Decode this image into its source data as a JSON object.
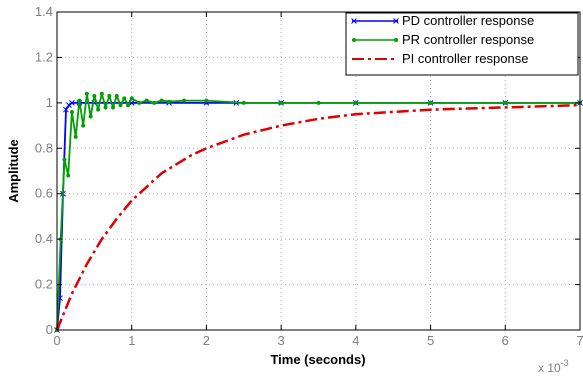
{
  "chart_data": {
    "type": "line",
    "xlabel": "Time (seconds)",
    "ylabel": "Amplitude",
    "x_exponent_label": "x 10",
    "x_exponent_power": "-3",
    "xlim": [
      0,
      0.007
    ],
    "ylim": [
      0,
      1.4
    ],
    "x_ticks": [
      0,
      0.001,
      0.002,
      0.003,
      0.004,
      0.005,
      0.006,
      0.007
    ],
    "x_tick_labels": [
      "0",
      "1",
      "2",
      "3",
      "4",
      "5",
      "6",
      "7"
    ],
    "y_ticks": [
      0,
      0.2,
      0.4,
      0.6,
      0.8,
      1.0,
      1.2,
      1.4
    ],
    "y_tick_labels": [
      "0",
      "0.2",
      "0.4",
      "0.6",
      "0.8",
      "1",
      "1.2",
      "1.4"
    ],
    "grid": true,
    "legend_position": "top-right",
    "series": [
      {
        "name": "PD controller response",
        "color": "#0000ff",
        "line_style": "solid",
        "marker": "x",
        "x": [
          0,
          4e-05,
          8e-05,
          0.00012,
          0.00016,
          0.0002,
          0.0003,
          0.0005,
          0.001,
          0.0015,
          0.002,
          0.0024,
          0.003,
          0.004,
          0.005,
          0.006,
          0.007
        ],
        "y": [
          0,
          0.14,
          0.6,
          0.97,
          0.99,
          1.0,
          1.0,
          1.0,
          1.0,
          1.0,
          1.0,
          1.0,
          1.0,
          1.0,
          1.0,
          1.0,
          1.0
        ]
      },
      {
        "name": "PR controller response",
        "color": "#00a000",
        "line_style": "solid",
        "marker": "dot",
        "x": [
          0,
          5e-05,
          0.0001,
          0.00015,
          0.0002,
          0.00025,
          0.0003,
          0.00035,
          0.0004,
          0.00045,
          0.0005,
          0.00055,
          0.0006,
          0.00065,
          0.0007,
          0.00075,
          0.0008,
          0.00085,
          0.0009,
          0.00095,
          0.001,
          0.0011,
          0.0012,
          0.0013,
          0.0014,
          0.0015,
          0.0017,
          0.002,
          0.0025,
          0.003,
          0.0035,
          0.004,
          0.005,
          0.006,
          0.007
        ],
        "y": [
          0,
          0.4,
          0.75,
          0.68,
          0.96,
          0.85,
          1.01,
          0.9,
          1.04,
          0.94,
          1.03,
          0.97,
          1.04,
          0.98,
          1.03,
          0.98,
          1.03,
          0.99,
          1.02,
          0.99,
          1.02,
          1.0,
          1.01,
          1.0,
          1.01,
          1.005,
          1.01,
          1.01,
          1.0,
          1.0,
          1.0,
          1.0,
          1.0,
          1.0,
          1.0
        ]
      },
      {
        "name": "PI controller response",
        "color": "#e00000",
        "line_style": "dash-dot",
        "marker": "none",
        "x": [
          0,
          0.0002,
          0.0004,
          0.0006,
          0.0008,
          0.001,
          0.0012,
          0.0014,
          0.0016,
          0.0018,
          0.002,
          0.0025,
          0.003,
          0.0035,
          0.004,
          0.0045,
          0.005,
          0.0055,
          0.006,
          0.0065,
          0.007
        ],
        "y": [
          0,
          0.16,
          0.29,
          0.4,
          0.49,
          0.57,
          0.63,
          0.69,
          0.73,
          0.77,
          0.8,
          0.86,
          0.9,
          0.93,
          0.95,
          0.96,
          0.97,
          0.975,
          0.98,
          0.985,
          0.99
        ]
      }
    ]
  }
}
